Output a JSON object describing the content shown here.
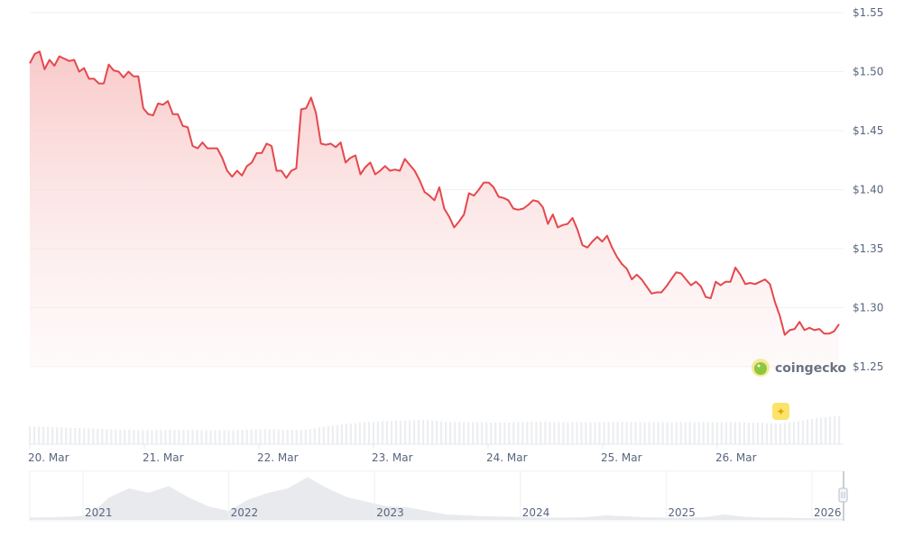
{
  "chart_data": {
    "type": "line",
    "title": "",
    "xlabel": "",
    "ylabel": "",
    "x_start": "20. Mar 00:00",
    "x_end": "26. Mar 21:00",
    "ylim": [
      1.25,
      1.55
    ],
    "y_ticks": [
      "$1.55",
      "$1.50",
      "$1.45",
      "$1.40",
      "$1.35",
      "$1.30",
      "$1.25"
    ],
    "y_tick_values": [
      1.55,
      1.5,
      1.45,
      1.4,
      1.35,
      1.3,
      1.25
    ],
    "x_ticks": [
      "20. Mar",
      "21. Mar",
      "22. Mar",
      "23. Mar",
      "24. Mar",
      "25. Mar",
      "26. Mar"
    ],
    "grid": true,
    "line_color": "#e5484d",
    "fill_color": "#f8c9c9",
    "values": [
      1.507,
      1.515,
      1.517,
      1.502,
      1.51,
      1.505,
      1.513,
      1.511,
      1.509,
      1.51,
      1.5,
      1.503,
      1.494,
      1.494,
      1.49,
      1.49,
      1.506,
      1.501,
      1.5,
      1.495,
      1.5,
      1.496,
      1.496,
      1.469,
      1.464,
      1.463,
      1.473,
      1.472,
      1.475,
      1.464,
      1.464,
      1.454,
      1.453,
      1.437,
      1.435,
      1.44,
      1.435,
      1.435,
      1.435,
      1.427,
      1.416,
      1.411,
      1.416,
      1.412,
      1.42,
      1.423,
      1.431,
      1.431,
      1.439,
      1.437,
      1.416,
      1.416,
      1.41,
      1.416,
      1.418,
      1.468,
      1.469,
      1.478,
      1.465,
      1.439,
      1.438,
      1.439,
      1.436,
      1.44,
      1.423,
      1.427,
      1.429,
      1.413,
      1.419,
      1.423,
      1.413,
      1.416,
      1.42,
      1.416,
      1.417,
      1.416,
      1.426,
      1.421,
      1.416,
      1.408,
      1.398,
      1.395,
      1.391,
      1.402,
      1.384,
      1.377,
      1.368,
      1.373,
      1.379,
      1.397,
      1.395,
      1.4,
      1.406,
      1.406,
      1.402,
      1.394,
      1.393,
      1.391,
      1.384,
      1.383,
      1.384,
      1.387,
      1.391,
      1.39,
      1.385,
      1.371,
      1.379,
      1.368,
      1.37,
      1.371,
      1.376,
      1.366,
      1.353,
      1.351,
      1.356,
      1.36,
      1.356,
      1.361,
      1.351,
      1.343,
      1.337,
      1.333,
      1.324,
      1.328,
      1.324,
      1.318,
      1.312,
      1.313,
      1.313,
      1.318,
      1.324,
      1.33,
      1.329,
      1.324,
      1.319,
      1.322,
      1.318,
      1.309,
      1.308,
      1.322,
      1.319,
      1.322,
      1.322,
      1.334,
      1.328,
      1.32,
      1.321,
      1.32,
      1.322,
      1.324,
      1.32,
      1.305,
      1.293,
      1.277,
      1.281,
      1.282,
      1.288,
      1.281,
      1.283,
      1.281,
      1.282,
      1.278,
      1.278,
      1.28,
      1.286
    ],
    "volume_relative": [
      0.62,
      0.6,
      0.57,
      0.55,
      0.52,
      0.5,
      0.48,
      0.5,
      0.49,
      0.48,
      0.48,
      0.5,
      0.52,
      0.5,
      0.5,
      0.62,
      0.7,
      0.76,
      0.8,
      0.82,
      0.85,
      0.78,
      0.76,
      0.76,
      0.75,
      0.77,
      0.78,
      0.76,
      0.76,
      0.76,
      0.78,
      0.76,
      0.76,
      0.76,
      0.76,
      0.76,
      0.76,
      0.74,
      0.72,
      0.8,
      0.92,
      0.98
    ],
    "navigator": {
      "year_labels": [
        "2021",
        "2022",
        "2023",
        "2024",
        "2025",
        "2026"
      ],
      "profile": [
        0.05,
        0.06,
        0.07,
        0.1,
        0.5,
        0.7,
        0.6,
        0.75,
        0.5,
        0.3,
        0.2,
        0.45,
        0.6,
        0.7,
        0.95,
        0.7,
        0.5,
        0.4,
        0.3,
        0.28,
        0.2,
        0.12,
        0.1,
        0.08,
        0.07,
        0.06,
        0.05,
        0.05,
        0.06,
        0.1,
        0.08,
        0.06,
        0.05,
        0.05,
        0.06,
        0.12,
        0.07,
        0.05,
        0.05,
        0.04,
        0.04,
        0.03
      ]
    }
  },
  "watermark": {
    "brand": "coingecko"
  }
}
